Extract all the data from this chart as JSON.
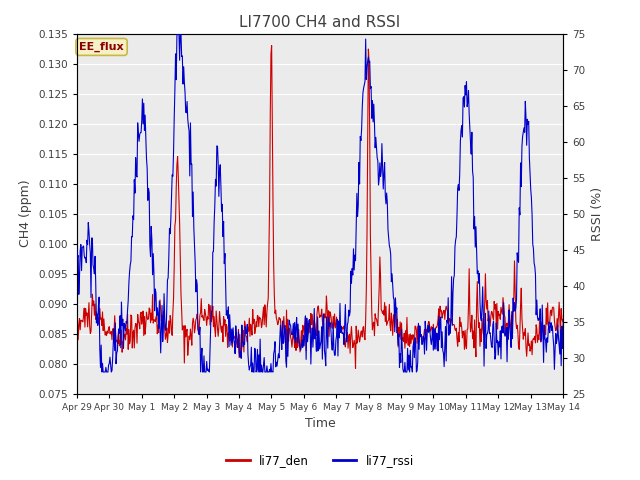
{
  "title": "LI7700 CH4 and RSSI",
  "xlabel": "Time",
  "ylabel_left": "CH4 (ppm)",
  "ylabel_right": "RSSI (%)",
  "ylim_left": [
    0.075,
    0.135
  ],
  "ylim_right": [
    25,
    75
  ],
  "yticks_left": [
    0.075,
    0.08,
    0.085,
    0.09,
    0.095,
    0.1,
    0.105,
    0.11,
    0.115,
    0.12,
    0.125,
    0.13,
    0.135
  ],
  "yticks_right": [
    25,
    30,
    35,
    40,
    45,
    50,
    55,
    60,
    65,
    70,
    75
  ],
  "xtick_labels": [
    "Apr 29",
    "Apr 30",
    "May 1",
    "May 2",
    "May 3",
    "May 4",
    "May 5",
    "May 6",
    "May 7",
    "May 8",
    "May 9",
    "May 10",
    "May 11",
    "May 12",
    "May 13",
    "May 14"
  ],
  "legend_labels": [
    "li77_den",
    "li77_rssi"
  ],
  "legend_colors": [
    "#cc0000",
    "#0000cc"
  ],
  "annotation_text": "EE_flux",
  "background_color": "#ffffff",
  "plot_bg_color": "#ebebeb",
  "grid_color": "#ffffff",
  "line_color_red": "#cc0000",
  "line_color_blue": "#0000cc",
  "title_color": "#404040",
  "axis_label_color": "#404040",
  "tick_label_color": "#404040",
  "annotation_fg": "#8b0000",
  "annotation_bg": "#f5f0c8",
  "annotation_edge": "#c8b840"
}
